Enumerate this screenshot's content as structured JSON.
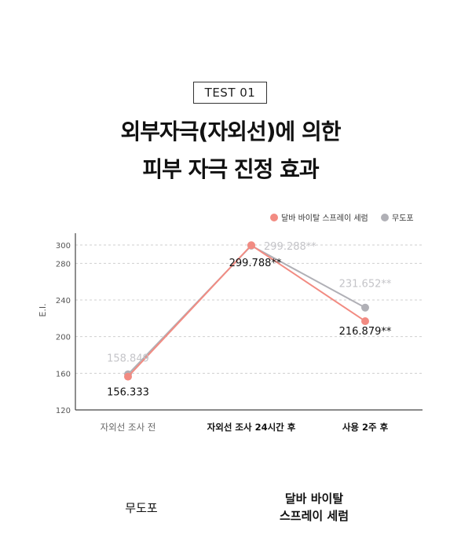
{
  "badge": "TEST 01",
  "title_line1": "외부자극(자외선)에 의한",
  "title_line2": "피부 자극 진정 효과",
  "bottom": {
    "left_label": "무도포",
    "right_label_line1": "달바 바이탈",
    "right_label_line2": "스프레이 세럼"
  },
  "colors": {
    "serum": "#f28b82",
    "control": "#b0b0b6",
    "grid": "#cfcfcf",
    "axis": "#444444"
  },
  "chart_data": {
    "type": "line",
    "categories": [
      "자외선 조사 전",
      "자외선 조사 24시간 후",
      "사용 2주 후"
    ],
    "ylabel": "E.I.",
    "ylim": [
      120,
      310
    ],
    "yticks": [
      120,
      160,
      200,
      240,
      280,
      300
    ],
    "grid": true,
    "legend_position": "top-right",
    "series": [
      {
        "name": "달바 바이탈 스프레이 세럼",
        "color": "#f28b82",
        "values": [
          156.333,
          299.788,
          216.879
        ],
        "labels": [
          "156.333",
          "299.788**",
          "216.879**"
        ]
      },
      {
        "name": "무도포",
        "color": "#b0b0b6",
        "values": [
          158.849,
          299.288,
          231.652
        ],
        "labels": [
          "158.849",
          "299.288**",
          "231.652**"
        ]
      }
    ]
  }
}
